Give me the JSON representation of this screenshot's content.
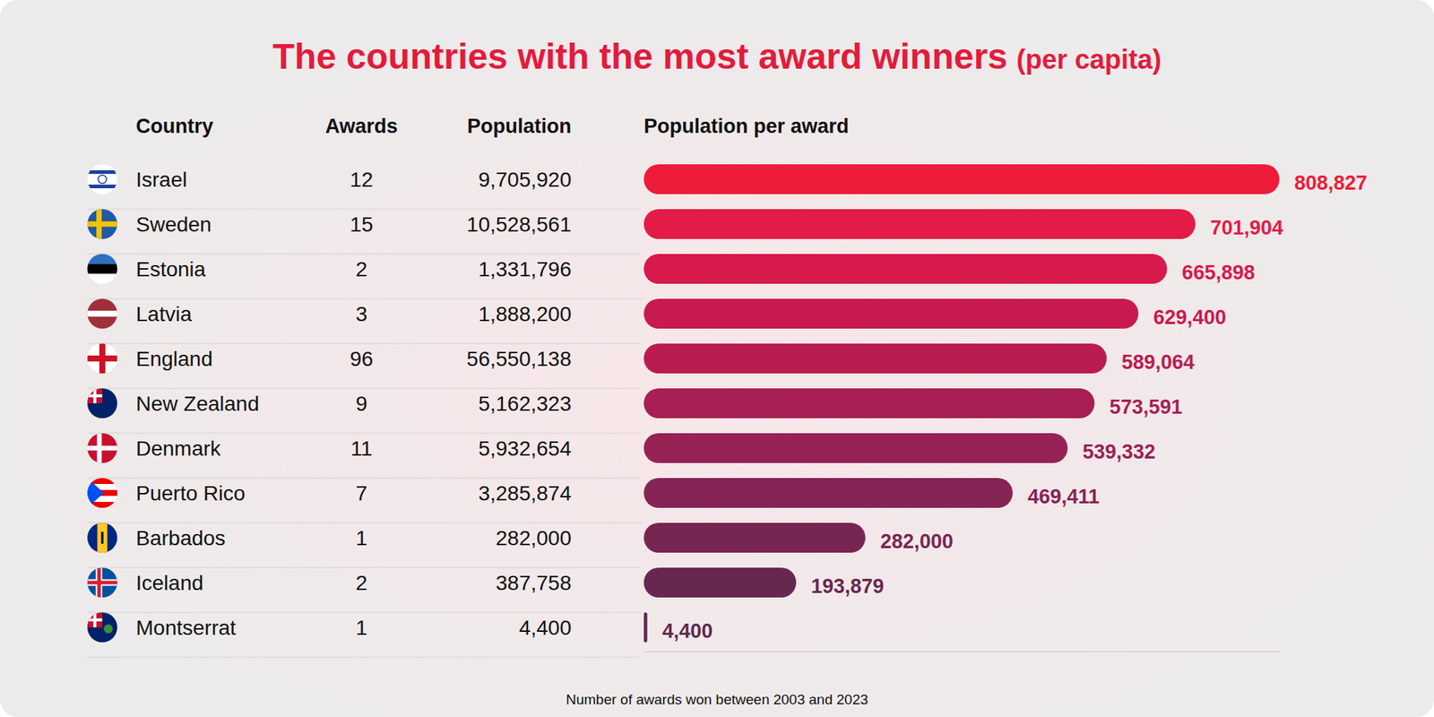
{
  "chart_data": {
    "type": "bar",
    "orientation": "horizontal",
    "title": "The countries with the most award winners",
    "subtitle": "(per capita)",
    "columns": [
      "Country",
      "Awards",
      "Population",
      "Population per award"
    ],
    "categories": [
      "Israel",
      "Sweden",
      "Estonia",
      "Latvia",
      "England",
      "New Zealand",
      "Denmark",
      "Puerto Rico",
      "Barbados",
      "Iceland",
      "Montserrat"
    ],
    "awards": [
      12,
      15,
      2,
      3,
      96,
      9,
      11,
      7,
      1,
      2,
      1
    ],
    "population": [
      9705920,
      10528561,
      1331796,
      1888200,
      56550138,
      5162323,
      5932654,
      3285874,
      282000,
      387758,
      4400
    ],
    "population_labels": [
      "9,705,920",
      "10,528,561",
      "1,331,796",
      "1,888,200",
      "56,550,138",
      "5,162,323",
      "5,932,654",
      "3,285,874",
      "282,000",
      "387,758",
      "4,400"
    ],
    "values": [
      808827,
      701904,
      665898,
      629400,
      589064,
      573591,
      539332,
      469411,
      282000,
      193879,
      4400
    ],
    "value_labels": [
      "808,827",
      "701,904",
      "665,898",
      "629,400",
      "589,064",
      "573,591",
      "539,332",
      "469,411",
      "282,000",
      "193,879",
      "4,400"
    ],
    "colors": [
      "#ed1c39",
      "#e31b47",
      "#d8194c",
      "#c91a4f",
      "#b91c51",
      "#a71f54",
      "#972256",
      "#862455",
      "#772652",
      "#672850",
      "#5e2a4f"
    ],
    "xlim": [
      0,
      808827
    ],
    "xticks": [],
    "data_labels": true,
    "tick_labels": false,
    "grid": false,
    "footnote": "Number of awards won between 2003 and 2023"
  }
}
